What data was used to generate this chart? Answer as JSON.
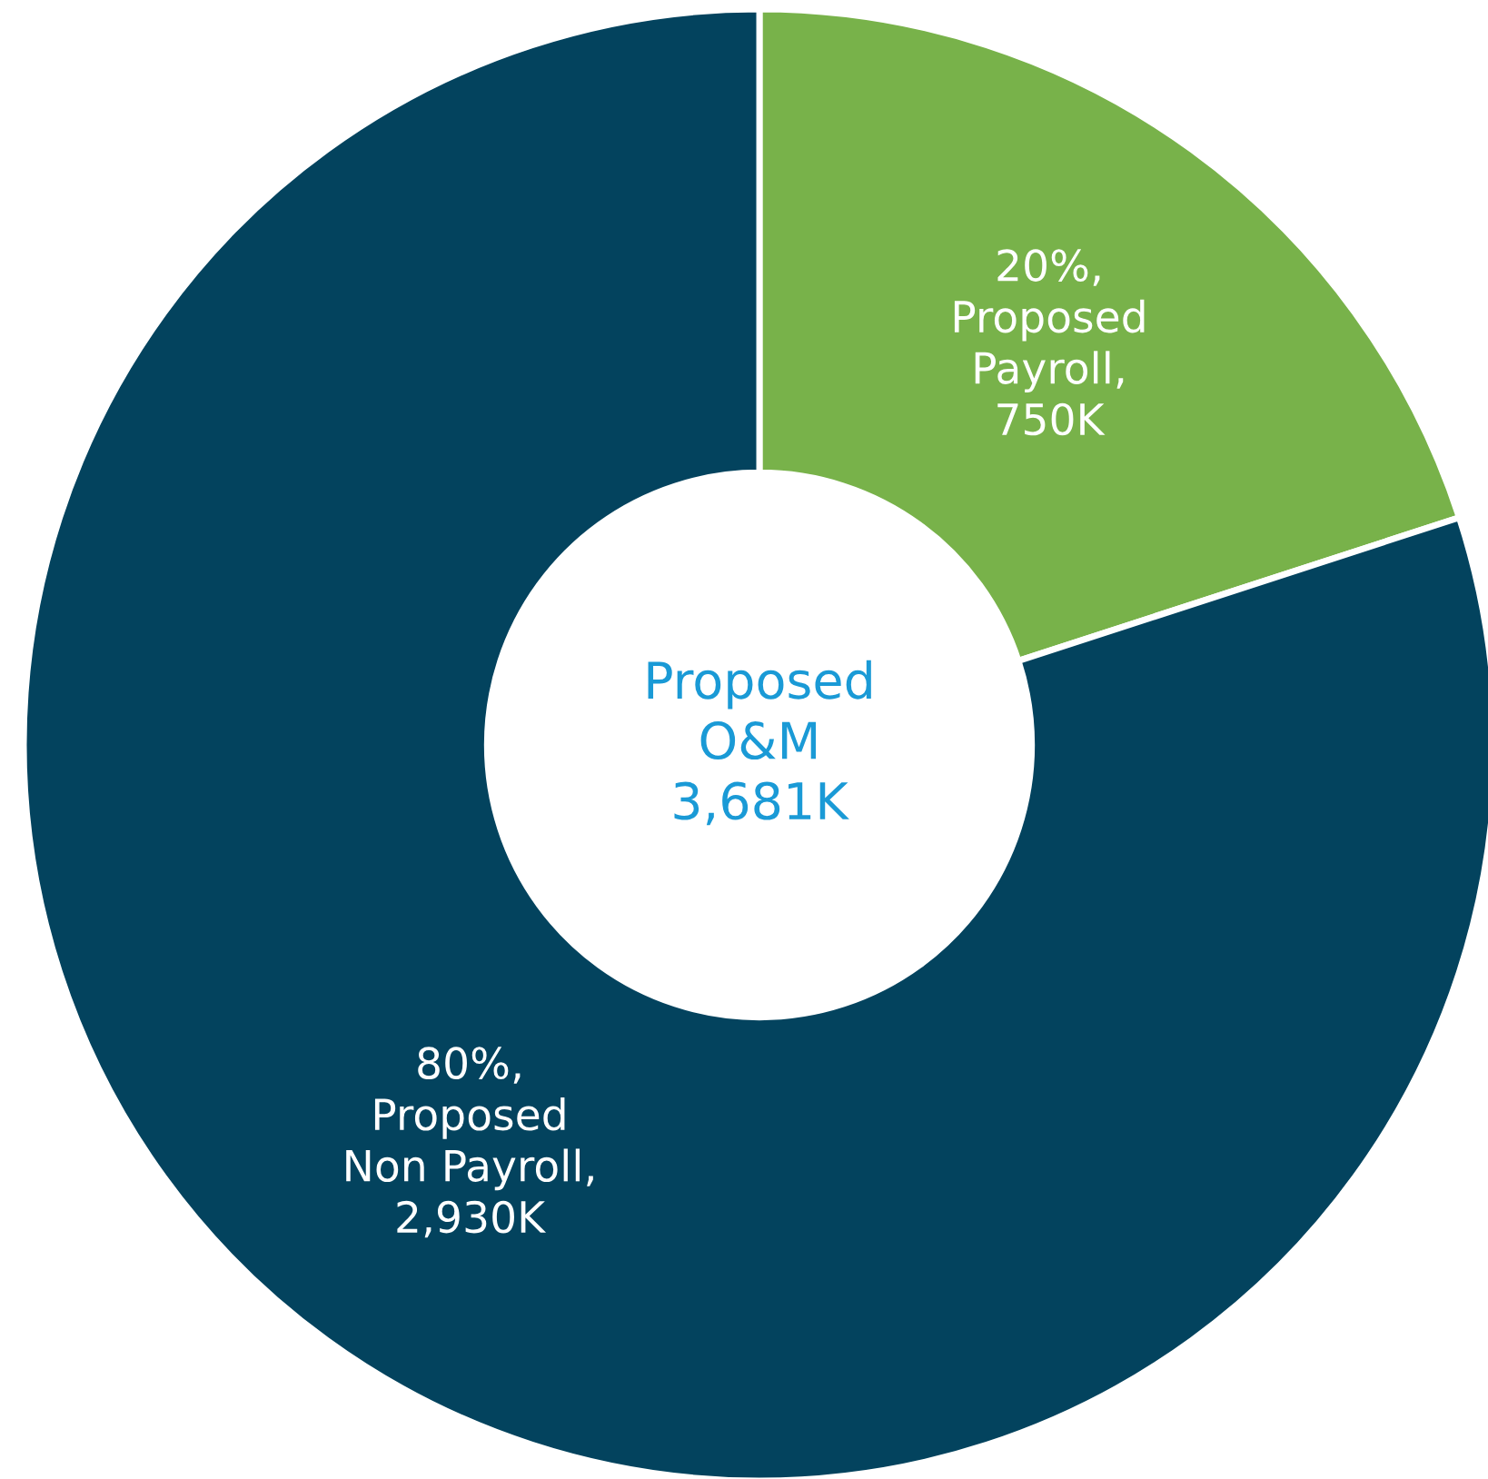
{
  "chart_data": {
    "type": "donut",
    "categories": [
      "Proposed Payroll, 750K",
      "Proposed Non Payroll, 2,930K"
    ],
    "values": [
      20,
      80
    ],
    "colors": [
      "#78b24a",
      "#03435e"
    ],
    "value_labels": [
      "20%,",
      "80%,"
    ],
    "annotations": [
      "Proposed\nO&M\n3,681K"
    ],
    "legend": false
  }
}
